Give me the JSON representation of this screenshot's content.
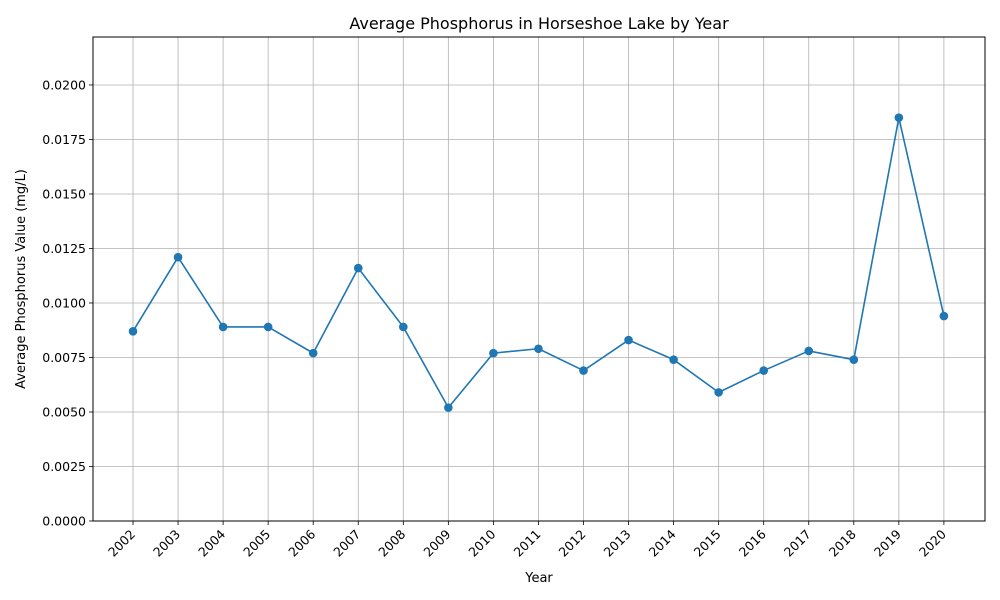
{
  "chart_data": {
    "type": "line",
    "title": "Average Phosphorus in Horseshoe Lake by Year",
    "xlabel": "Year",
    "ylabel": "Average Phosphorus Value (mg/L)",
    "categories": [
      "2002",
      "2003",
      "2004",
      "2005",
      "2006",
      "2007",
      "2008",
      "2009",
      "2010",
      "2011",
      "2012",
      "2013",
      "2014",
      "2015",
      "2016",
      "2017",
      "2018",
      "2019",
      "2020"
    ],
    "series": [
      {
        "values": [
          0.0087,
          0.0121,
          0.0089,
          0.0089,
          0.0077,
          0.0116,
          0.0089,
          0.0052,
          0.0077,
          0.0079,
          0.0069,
          0.0083,
          0.0074,
          0.0059,
          0.0069,
          0.0078,
          0.0074,
          0.0185,
          0.0094
        ],
        "color": "#1f77b4",
        "marker": "circle"
      }
    ],
    "ylim": [
      0,
      0.0222
    ],
    "yticks": [
      0,
      0.0025,
      0.005,
      0.0075,
      0.01,
      0.0125,
      0.015,
      0.0175,
      0.02
    ],
    "ytick_labels": [
      "0.0000",
      "0.0025",
      "0.0050",
      "0.0075",
      "0.0100",
      "0.0125",
      "0.0150",
      "0.0175",
      "0.0200"
    ],
    "grid": true,
    "grid_color": "#b0b0b0",
    "x_tick_rotation_deg": 45
  }
}
